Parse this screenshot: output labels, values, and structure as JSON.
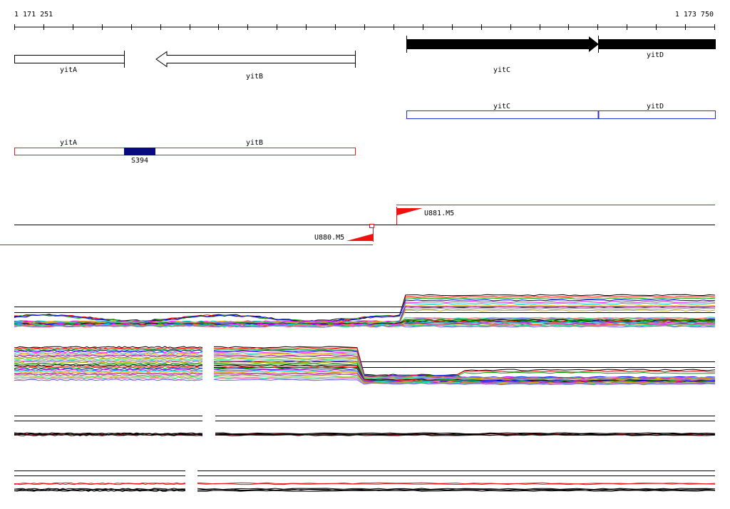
{
  "window": {
    "title": ""
  },
  "ruler": {
    "start_label": "1 171 251",
    "end_label": "1 173 750",
    "start_bp": 1171251,
    "end_bp": 1173750,
    "tick_count": 24
  },
  "colors": {
    "annotation_fill": "#000000",
    "annotation_outline": "#000000",
    "cds_outline": "#2233cc",
    "transcript_outline": "#dd2222",
    "s_segment_fill": "#0a0a80",
    "tss_marker": "#ee1111",
    "baseline": "#000000"
  },
  "genes": [
    {
      "name": "yitA",
      "strand": "+",
      "highlight": false
    },
    {
      "name": "yitB",
      "strand": "-",
      "highlight": false
    },
    {
      "name": "yitC",
      "strand": "+",
      "highlight": true
    },
    {
      "name": "yitD",
      "strand": "+",
      "highlight": true
    }
  ],
  "cds_track": {
    "labels": {
      "yitC": "yitC",
      "yitD": "yitD"
    }
  },
  "transcript_track": {
    "labels": {
      "yitA": "yitA",
      "yitB": "yitB"
    },
    "segment_label": "S394"
  },
  "tss_markers": {
    "forward": {
      "name": "U881.M5",
      "strand": "+"
    },
    "reverse": {
      "name": "U880.M5",
      "strand": "-"
    }
  },
  "expression_panels": [
    {
      "name": "panel-1",
      "kind": "multicolor"
    },
    {
      "name": "panel-2",
      "kind": "multicolor"
    },
    {
      "name": "panel-3",
      "kind": "red-black"
    },
    {
      "name": "panel-4",
      "kind": "red-black"
    }
  ],
  "series_palette": [
    "#000000",
    "#ff0000",
    "#00aa00",
    "#0000ff",
    "#ff00ff",
    "#00cccc",
    "#ffaa00",
    "#aa00aa",
    "#888888",
    "#ccaa00",
    "#00ff88",
    "#ff6688",
    "#6666ff",
    "#bbbb00",
    "#008800"
  ]
}
